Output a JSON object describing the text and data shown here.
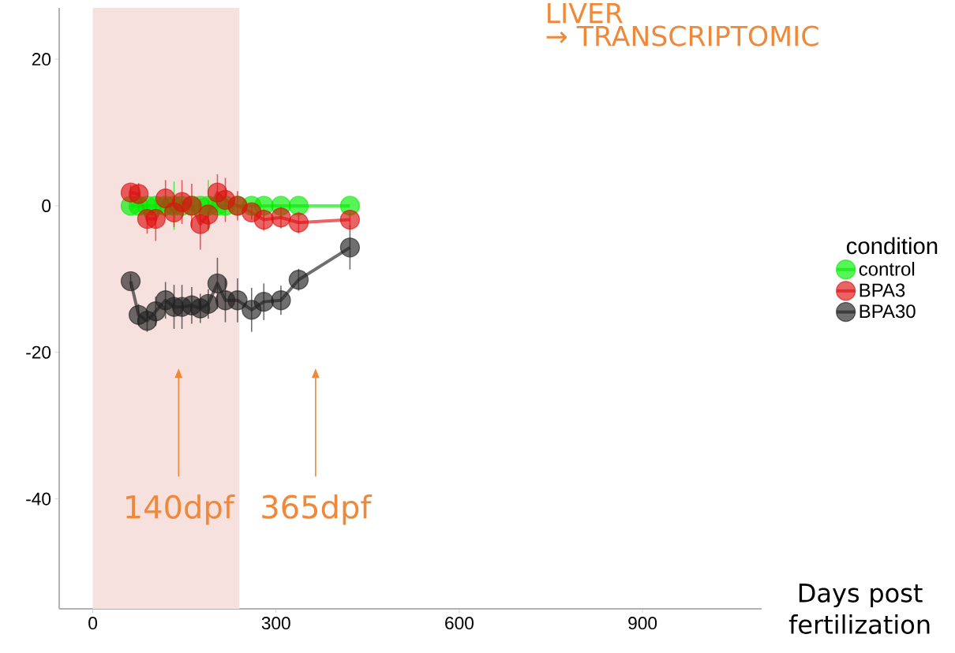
{
  "chart_data": {
    "type": "line",
    "xlabel": "Days post fertilization",
    "legend_title": "condition",
    "x": [
      62,
      75,
      89,
      103,
      119,
      133,
      146,
      162,
      176,
      189,
      204,
      217,
      237,
      260,
      280,
      308,
      337,
      421
    ],
    "series": [
      {
        "name": "control",
        "color": "#00ee00",
        "values": [
          0,
          0,
          0,
          0,
          0,
          0,
          0,
          0,
          0,
          0,
          0,
          0,
          0,
          0,
          0,
          0,
          0,
          0
        ],
        "errors": [
          null,
          null,
          null,
          null,
          null,
          3.3,
          null,
          null,
          null,
          3.5,
          null,
          null,
          null,
          null,
          null,
          null,
          null,
          null
        ]
      },
      {
        "name": "BPA3",
        "color": "#dd1111",
        "values": [
          1.8,
          1.6,
          -1.8,
          -1.8,
          1.0,
          -0.9,
          0.5,
          0,
          -2.5,
          -1.2,
          1.8,
          0.8,
          0,
          -0.9,
          -1.9,
          -1.6,
          -2.3,
          -1.9
        ],
        "errors": [
          1,
          1.5,
          2,
          3,
          2.5,
          2,
          3,
          3,
          3.5,
          2,
          2.5,
          3,
          2,
          1,
          1.5,
          1.5,
          1.5,
          1
        ]
      },
      {
        "name": "BPA30",
        "color": "#222222",
        "values": [
          -10.3,
          -14.9,
          -15.7,
          -14.4,
          -12.9,
          -13.8,
          -13.8,
          -13.6,
          -14.0,
          -13.4,
          -10.6,
          -12.9,
          -12.9,
          -14.2,
          -13.1,
          -12.9,
          -10.1,
          -5.7
        ],
        "errors": [
          1,
          1.5,
          1.5,
          2,
          2.5,
          3,
          3,
          2.5,
          2,
          2,
          3.5,
          3,
          3,
          3,
          2.5,
          2,
          1.5,
          3
        ]
      }
    ],
    "xlim": [
      -55,
      1095
    ],
    "ylim": [
      -55,
      27
    ],
    "xticks": [
      0,
      300,
      600,
      900
    ],
    "yticks": [
      -40,
      -20,
      0,
      20
    ],
    "bands": [
      {
        "axis": "x",
        "from": 0,
        "to": 240,
        "color": "#f7e1df"
      }
    ],
    "annotations": [
      "140dpf",
      "365dpf",
      "LIVER",
      "→ TRANSCRIPTOMIC"
    ],
    "legend": "right",
    "grid": false,
    "marker": "circle",
    "line_style": "solid"
  }
}
